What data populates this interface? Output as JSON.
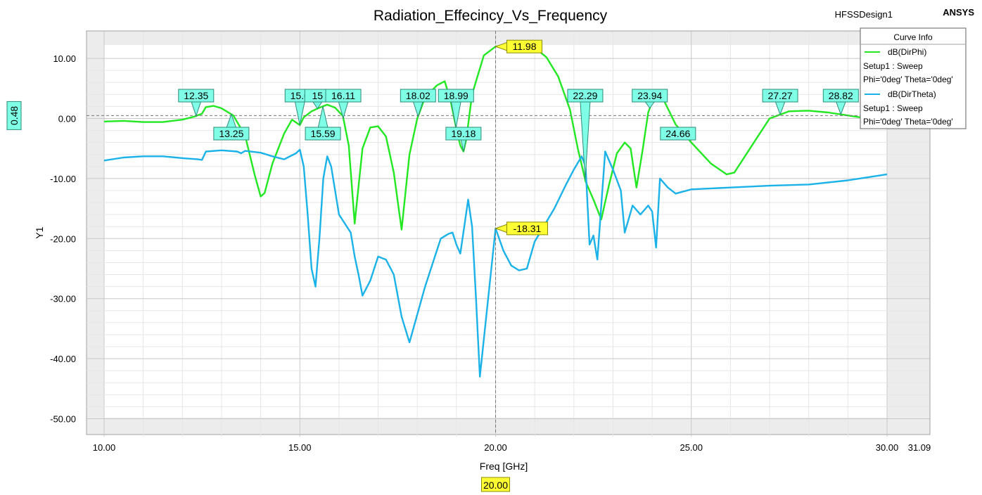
{
  "header": {
    "title": "Radiation_Effecincy_Vs_Frequency",
    "design_name": "HFSSDesign1",
    "brand": "ANSYS"
  },
  "legend": {
    "title": "Curve Info",
    "entries": [
      {
        "name": "dB(DirPhi)",
        "line1": "Setup1 : Sweep",
        "line2": "Phi='0deg' Theta='0deg'",
        "color": "#22e822"
      },
      {
        "name": "dB(DirTheta)",
        "line1": "Setup1 : Sweep",
        "line2": "Phi='0deg' Theta='0deg'",
        "color": "#1ab2e8"
      }
    ]
  },
  "axes": {
    "xlabel": "Freq [GHz]",
    "ylabel": "Y1",
    "x_ticks": [
      "10.00",
      "15.00",
      "20.00",
      "25.00",
      "30.00"
    ],
    "x_max_label": "31.09",
    "y_ticks": [
      "10.00",
      "0.00",
      "-10.00",
      "-20.00",
      "-30.00",
      "-40.00",
      "-50.00"
    ]
  },
  "cursors": {
    "x_value": 20,
    "x_label": "20.00",
    "y_value": 0.48,
    "y_label": "0.48",
    "colors": {
      "cursor": "#777777",
      "x_label_bg": "#ffff33",
      "marker_bg": "#7fffe6"
    }
  },
  "markers": [
    {
      "label": "12.35",
      "x": 12.35,
      "series": 0,
      "pos": "above"
    },
    {
      "label": "13.25",
      "x": 13.25,
      "series": 0,
      "pos": "below"
    },
    {
      "label": "15.0",
      "x": 15.0,
      "series": 0,
      "pos": "above"
    },
    {
      "label": "15",
      "x": 15.45,
      "series": 0,
      "pos": "above"
    },
    {
      "label": "16.11",
      "x": 16.11,
      "series": 0,
      "pos": "above"
    },
    {
      "label": "15.59",
      "x": 15.59,
      "series": 0,
      "pos": "below"
    },
    {
      "label": "18.02",
      "x": 18.02,
      "series": 0,
      "pos": "above"
    },
    {
      "label": "18.99",
      "x": 18.99,
      "series": 0,
      "pos": "above"
    },
    {
      "label": "19.18",
      "x": 19.18,
      "series": 0,
      "pos": "below"
    },
    {
      "label": "22.29",
      "x": 22.29,
      "series": 0,
      "pos": "above"
    },
    {
      "label": "23.94",
      "x": 23.94,
      "series": 0,
      "pos": "above"
    },
    {
      "label": "24.66",
      "x": 24.66,
      "series": 0,
      "pos": "below"
    },
    {
      "label": "27.27",
      "x": 27.27,
      "series": 0,
      "pos": "above"
    },
    {
      "label": "28.82",
      "x": 28.82,
      "series": 0,
      "pos": "above"
    }
  ],
  "value_markers": [
    {
      "label": "11.98",
      "x": 20.0,
      "y": 11.98
    },
    {
      "label": "-18.31",
      "x": 20.0,
      "y": -18.31
    }
  ],
  "chart_data": {
    "type": "line",
    "title": "Radiation_Effecincy_Vs_Frequency",
    "xlabel": "Freq [GHz]",
    "ylabel": "Y1",
    "xlim": [
      9.55,
      31.09
    ],
    "ylim": [
      -53,
      14.5
    ],
    "grid": true,
    "legend_position": "top-right",
    "series": [
      {
        "name": "dB(DirPhi)",
        "color": "#22e822",
        "x": [
          10.0,
          10.5,
          11.0,
          11.5,
          12.0,
          12.3,
          12.5,
          12.6,
          12.8,
          13.0,
          13.3,
          13.6,
          13.85,
          14.0,
          14.1,
          14.3,
          14.6,
          14.8,
          15.0,
          15.1,
          15.3,
          15.5,
          15.7,
          15.9,
          16.1,
          16.25,
          16.4,
          16.6,
          16.8,
          17.0,
          17.2,
          17.4,
          17.6,
          17.8,
          18.0,
          18.2,
          18.5,
          18.7,
          18.85,
          18.99,
          19.1,
          19.18,
          19.25,
          19.4,
          19.7,
          20.0,
          20.3,
          20.7,
          21.0,
          21.3,
          21.6,
          21.9,
          22.1,
          22.3,
          22.5,
          22.7,
          22.9,
          23.1,
          23.3,
          23.45,
          23.6,
          23.75,
          23.9,
          24.1,
          24.3,
          24.6,
          25.0,
          25.5,
          25.9,
          26.1,
          26.5,
          27.0,
          27.5,
          28.0,
          28.5,
          29.0,
          29.5,
          30.0
        ],
        "y": [
          -0.5,
          -0.4,
          -0.6,
          -0.6,
          -0.2,
          0.3,
          0.8,
          1.9,
          2.1,
          1.7,
          0.5,
          -2.8,
          -9.5,
          -13.0,
          -12.4,
          -7.5,
          -2.5,
          -0.2,
          -1.1,
          0.2,
          1.2,
          1.8,
          2.3,
          1.8,
          0.4,
          -4.5,
          -17.5,
          -5.0,
          -1.5,
          -1.3,
          -3.0,
          -9.0,
          -18.5,
          -6.0,
          0.0,
          3.5,
          5.5,
          6.2,
          3.0,
          -1.5,
          -4.5,
          -5.5,
          -3.5,
          4.0,
          10.5,
          11.98,
          12.3,
          12.3,
          11.8,
          10.2,
          7.0,
          1.5,
          -5.0,
          -10.5,
          -13.5,
          -16.8,
          -11.0,
          -5.8,
          -4.0,
          -5.0,
          -11.5,
          -5.5,
          1.0,
          4.6,
          3.0,
          -1.0,
          -4.0,
          -7.5,
          -9.3,
          -9.0,
          -5.0,
          0.0,
          1.2,
          1.3,
          1.0,
          0.5,
          0.0,
          -0.5
        ]
      },
      {
        "name": "dB(DirTheta)",
        "color": "#1ab2e8",
        "x": [
          10.0,
          10.5,
          11.0,
          11.5,
          12.0,
          12.4,
          12.5,
          12.6,
          13.0,
          13.4,
          13.5,
          13.6,
          14.0,
          14.3,
          14.6,
          14.9,
          15.0,
          15.1,
          15.2,
          15.3,
          15.4,
          15.5,
          15.6,
          15.7,
          15.8,
          16.0,
          16.3,
          16.4,
          16.5,
          16.6,
          16.8,
          17.0,
          17.2,
          17.4,
          17.6,
          17.8,
          18.2,
          18.6,
          18.8,
          18.9,
          19.0,
          19.1,
          19.2,
          19.3,
          19.4,
          19.5,
          19.6,
          20.0,
          20.2,
          20.4,
          20.6,
          20.8,
          21.0,
          21.5,
          21.8,
          22.0,
          22.2,
          22.3,
          22.4,
          22.5,
          22.6,
          22.8,
          23.0,
          23.2,
          23.3,
          23.5,
          23.7,
          23.9,
          24.0,
          24.1,
          24.2,
          24.4,
          24.6,
          25.0,
          26.0,
          27.0,
          28.0,
          29.0,
          30.0
        ],
        "y": [
          -7.0,
          -6.5,
          -6.3,
          -6.3,
          -6.6,
          -6.8,
          -6.9,
          -5.5,
          -5.3,
          -5.5,
          -5.8,
          -5.4,
          -5.7,
          -6.3,
          -6.8,
          -5.8,
          -5.2,
          -8.0,
          -16.0,
          -25.0,
          -28.0,
          -20.0,
          -10.0,
          -6.3,
          -8.0,
          -16.0,
          -19.0,
          -23.0,
          -26.0,
          -29.5,
          -27.0,
          -23.0,
          -23.5,
          -26.0,
          -33.0,
          -37.3,
          -28.0,
          -20.0,
          -19.2,
          -19.0,
          -21.0,
          -22.5,
          -18.0,
          -13.5,
          -18.0,
          -30.0,
          -43.0,
          -18.31,
          -22.0,
          -24.5,
          -25.3,
          -25.0,
          -20.5,
          -15.0,
          -11.0,
          -8.5,
          -6.3,
          -8.0,
          -21.0,
          -19.5,
          -23.5,
          -5.5,
          -8.5,
          -12.0,
          -19.0,
          -14.5,
          -16.0,
          -14.5,
          -15.5,
          -21.5,
          -10.0,
          -11.5,
          -12.5,
          -11.8,
          -11.5,
          -11.2,
          -11.0,
          -10.3,
          -9.3
        ]
      }
    ]
  }
}
